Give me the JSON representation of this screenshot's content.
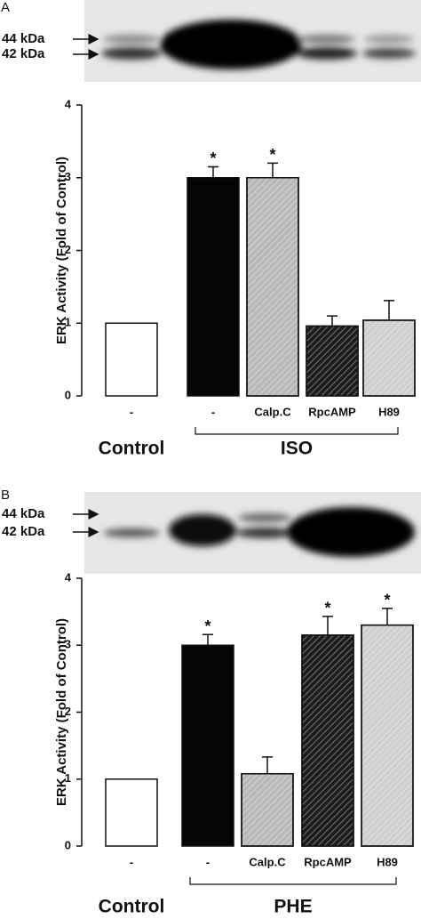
{
  "chart_data": [
    {
      "type": "bar",
      "panel": "A",
      "blot_labels": [
        "44 kDa",
        "42 kDa"
      ],
      "ylabel": "ERK Activity (Fold of Control)",
      "categories": [
        "-",
        "-",
        "Calp.C",
        "RpcAMP",
        "H89"
      ],
      "values": [
        1,
        3.0,
        3.0,
        0.96,
        1.04
      ],
      "errors": [
        0,
        0.15,
        0.2,
        0.14,
        0.27
      ],
      "significance": [
        null,
        "*",
        "*",
        null,
        null
      ],
      "colors": [
        "#ffffff",
        "#050505",
        "#b8b8b8",
        "#1c1c1c",
        "#cfcfcf"
      ],
      "hatched": [
        false,
        false,
        true,
        true,
        true
      ],
      "group_labels": [
        "Control",
        "ISO"
      ],
      "ylim": [
        0,
        4
      ],
      "yticks": [
        0,
        1,
        2,
        3,
        4
      ]
    },
    {
      "type": "bar",
      "panel": "B",
      "blot_labels": [
        "44 kDa",
        "42 kDa"
      ],
      "ylabel": "ERK Activity (Fold of Control)",
      "categories": [
        "-",
        "-",
        "Calp.C",
        "RpcAMP",
        "H89"
      ],
      "values": [
        1,
        3.0,
        1.08,
        3.15,
        3.3
      ],
      "errors": [
        0,
        0.16,
        0.25,
        0.28,
        0.25
      ],
      "significance": [
        null,
        "*",
        null,
        "*",
        "*"
      ],
      "colors": [
        "#ffffff",
        "#050505",
        "#b8b8b8",
        "#1c1c1c",
        "#cfcfcf"
      ],
      "hatched": [
        false,
        false,
        true,
        true,
        true
      ],
      "group_labels": [
        "Control",
        "PHE"
      ],
      "ylim": [
        0,
        4
      ],
      "yticks": [
        0,
        1,
        2,
        3,
        4
      ]
    }
  ]
}
